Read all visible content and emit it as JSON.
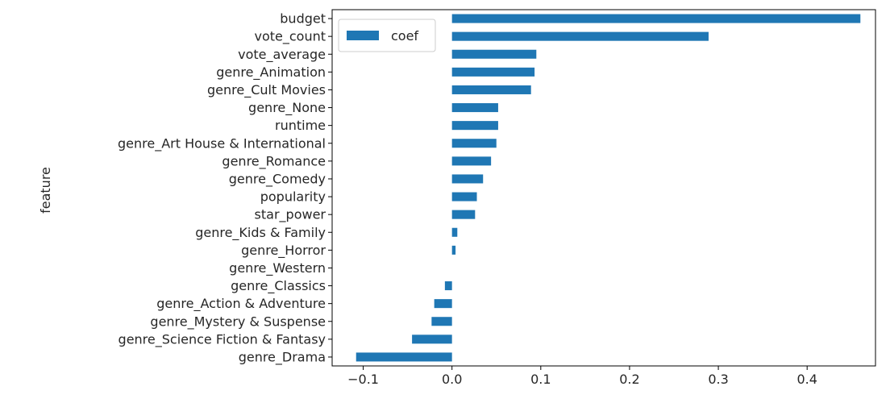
{
  "chart_data": {
    "type": "bar",
    "orientation": "horizontal",
    "title": "",
    "xlabel": "",
    "ylabel": "feature",
    "xlim": [
      -0.135,
      0.477
    ],
    "xticks": [
      -0.1,
      0.0,
      0.1,
      0.2,
      0.3,
      0.4
    ],
    "xtick_labels": [
      "−0.1",
      "0.0",
      "0.1",
      "0.2",
      "0.3",
      "0.4"
    ],
    "grid": false,
    "legend_placement": "top-left",
    "color": "#1f77b4",
    "categories": [
      "budget",
      "vote_count",
      "vote_average",
      "genre_Animation",
      "genre_Cult Movies",
      "genre_None",
      "runtime",
      "genre_Art House & International",
      "genre_Romance",
      "genre_Comedy",
      "popularity",
      "star_power",
      "genre_Kids & Family",
      "genre_Horror",
      "genre_Western",
      "genre_Classics",
      "genre_Action & Adventure",
      "genre_Mystery & Suspense",
      "genre_Science Fiction & Fantasy",
      "genre_Drama"
    ],
    "series": [
      {
        "name": "coef",
        "values": [
          0.46,
          0.289,
          0.095,
          0.093,
          0.089,
          0.052,
          0.052,
          0.05,
          0.044,
          0.035,
          0.028,
          0.026,
          0.006,
          0.004,
          0.0,
          -0.008,
          -0.02,
          -0.023,
          -0.045,
          -0.108
        ]
      }
    ]
  }
}
